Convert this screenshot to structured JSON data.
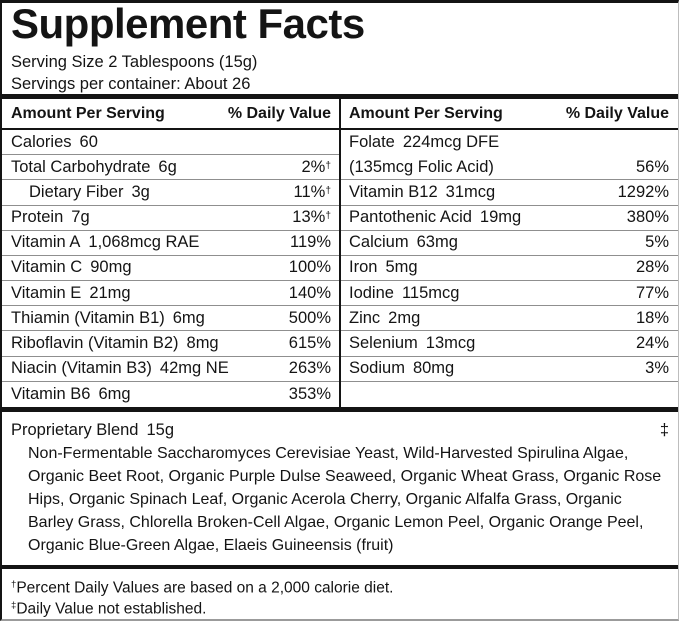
{
  "title": "Supplement Facts",
  "serving": {
    "size": "Serving Size 2 Tablespoons (15g)",
    "per_container": "Servings per container: About 26"
  },
  "columns": {
    "amount": "Amount Per Serving",
    "dv": "% Daily Value"
  },
  "left_rows": [
    {
      "name": "Calories",
      "amount": "60",
      "dv": "",
      "dagger": ""
    },
    {
      "name": "Total Carbohydrate",
      "amount": "6g",
      "dv": "2%",
      "dagger": "†"
    },
    {
      "name": "Dietary Fiber",
      "amount": "3g",
      "dv": "11%",
      "dagger": "†",
      "indent": true
    },
    {
      "name": "Protein",
      "amount": "7g",
      "dv": "13%",
      "dagger": "†"
    },
    {
      "name": "Vitamin A",
      "amount": "1,068mcg RAE",
      "dv": "119%",
      "dagger": ""
    },
    {
      "name": "Vitamin C",
      "amount": "90mg",
      "dv": "100%",
      "dagger": ""
    },
    {
      "name": "Vitamin E",
      "amount": "21mg",
      "dv": "140%",
      "dagger": ""
    },
    {
      "name": "Thiamin (Vitamin B1)",
      "amount": "6mg",
      "dv": "500%",
      "dagger": ""
    },
    {
      "name": "Riboflavin (Vitamin B2)",
      "amount": "8mg",
      "dv": "615%",
      "dagger": ""
    },
    {
      "name": "Niacin (Vitamin B3)",
      "amount": "42mg NE",
      "dv": "263%",
      "dagger": ""
    },
    {
      "name": "Vitamin B6",
      "amount": "6mg",
      "dv": "353%",
      "dagger": ""
    }
  ],
  "right_rows": [
    {
      "name": "Folate",
      "amount": "224mcg DFE",
      "name2": "(135mcg Folic Acid)",
      "dv": "56%"
    },
    {
      "name": "Vitamin B12",
      "amount": "31mcg",
      "dv": "1292%"
    },
    {
      "name": "Pantothenic Acid",
      "amount": "19mg",
      "dv": "380%"
    },
    {
      "name": "Calcium",
      "amount": "63mg",
      "dv": "5%"
    },
    {
      "name": "Iron",
      "amount": "5mg",
      "dv": "28%"
    },
    {
      "name": "Iodine",
      "amount": "115mcg",
      "dv": "77%"
    },
    {
      "name": "Zinc",
      "amount": "2mg",
      "dv": "18%"
    },
    {
      "name": "Selenium",
      "amount": "13mcg",
      "dv": "24%"
    },
    {
      "name": "Sodium",
      "amount": "80mg",
      "dv": "3%"
    }
  ],
  "blend": {
    "name": "Proprietary Blend",
    "amount": "15g",
    "mark": "‡",
    "ingredients": "Non-Fermentable Saccharomyces Cerevisiae Yeast, Wild-Harvested Spirulina Algae, Organic Beet Root, Organic Purple Dulse Seaweed, Organic Wheat Grass, Organic Rose Hips, Organic Spinach Leaf, Organic Acerola Cherry, Organic Alfalfa Grass, Organic Barley Grass, Chlorella Broken-Cell Algae, Organic Lemon Peel, Organic Orange Peel, Organic Blue-Green Algae, Elaeis Guineensis (fruit)"
  },
  "footnotes": [
    {
      "mark": "†",
      "text": "Percent Daily Values are based on a 2,000 calorie diet."
    },
    {
      "mark": "‡",
      "text": "Daily Value not established."
    }
  ],
  "colors": {
    "text": "#141414",
    "rule": "#8f8f8f",
    "bar": "#141414",
    "background": "#ffffff"
  }
}
